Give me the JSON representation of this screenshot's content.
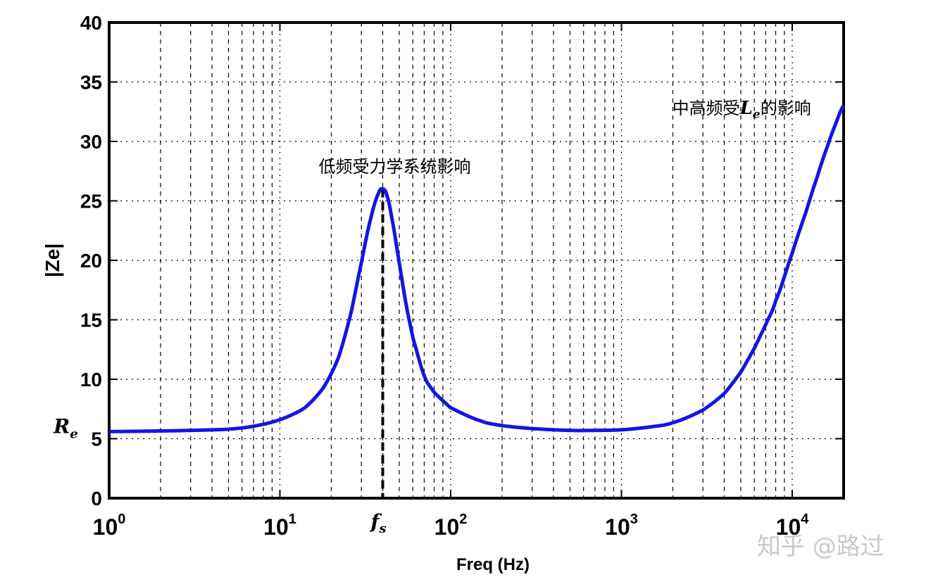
{
  "chart_data": {
    "type": "line",
    "xscale": "log",
    "xlim": [
      1,
      20000
    ],
    "ylim": [
      0,
      40
    ],
    "xlabel": "Freq (Hz)",
    "ylabel": "|Ze|",
    "grid": true,
    "x_major_ticks": [
      1,
      10,
      100,
      1000,
      10000
    ],
    "x_tick_labels": [
      {
        "base": "10",
        "exp": "0"
      },
      {
        "base": "10",
        "exp": "1"
      },
      {
        "base": "10",
        "exp": "2"
      },
      {
        "base": "10",
        "exp": "3"
      },
      {
        "base": "10",
        "exp": "4"
      }
    ],
    "y_ticks": [
      0,
      5,
      10,
      15,
      20,
      25,
      30,
      35,
      40
    ],
    "series": [
      {
        "color": "#1414e6",
        "x": [
          1,
          2,
          3,
          5,
          7,
          10,
          14,
          18,
          22,
          26,
          30,
          34,
          38,
          40,
          42,
          45,
          50,
          55,
          60,
          70,
          80,
          100,
          150,
          200,
          300,
          500,
          700,
          1000,
          1500,
          2000,
          3000,
          4000,
          5000,
          6000,
          7000,
          8000,
          10000,
          12000,
          14000,
          16000,
          18000,
          20000
        ],
        "y": [
          5.6,
          5.65,
          5.7,
          5.8,
          6.05,
          6.6,
          7.6,
          9.3,
          11.8,
          15.5,
          19.8,
          23.5,
          25.7,
          26.0,
          25.6,
          23.7,
          19.8,
          16.2,
          13.5,
          10.3,
          8.9,
          7.6,
          6.5,
          6.1,
          5.85,
          5.7,
          5.7,
          5.75,
          6.0,
          6.35,
          7.4,
          8.8,
          10.6,
          12.6,
          14.6,
          16.6,
          20.6,
          24.0,
          27.0,
          29.5,
          31.5,
          33.0
        ]
      }
    ],
    "fs_marker": {
      "x": 40,
      "y": 26,
      "label": "f",
      "sub": "s"
    },
    "re_marker": {
      "y": 5.6,
      "label": "R",
      "sub": "e"
    },
    "annotations": {
      "low": {
        "text": "低频受力学系统影响",
        "x": 40,
        "y": 27.4
      },
      "high": {
        "before": "中高频受",
        "math": "L",
        "sub": "e",
        "after": "的影响",
        "x": 3000,
        "y": 32.3
      }
    }
  },
  "watermark": "知乎 @路过"
}
